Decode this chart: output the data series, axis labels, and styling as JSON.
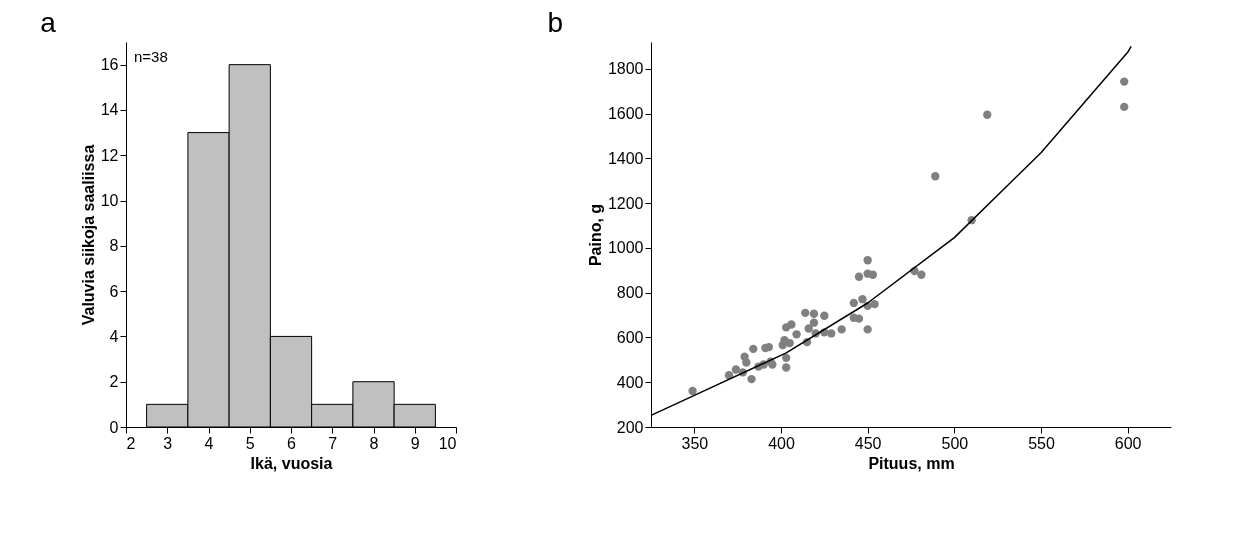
{
  "chart_data": [
    {
      "type": "histogram",
      "title": "a",
      "xlabel": "Ikä, vuosia",
      "ylabel": "Valuvia siikoja saaliissa",
      "bins": [
        2.5,
        3.5,
        4.5,
        5.5,
        6.5,
        7.5,
        8.5,
        9.5
      ],
      "values": [
        1,
        13,
        16,
        4,
        1,
        2,
        1
      ],
      "color": "#c0c0c0",
      "xlim": [
        2,
        10
      ],
      "xticks": [
        2,
        3,
        4,
        5,
        6,
        7,
        8,
        9,
        10
      ],
      "ylim": [
        0,
        17
      ],
      "yticks": [
        0,
        2,
        4,
        6,
        8,
        10,
        12,
        14,
        16
      ],
      "annotations": [
        "n=38"
      ],
      "grid": false,
      "legend": false
    },
    {
      "type": "scatter",
      "title": "b",
      "xlabel": "Pituus, mm",
      "ylabel": "Paino, g",
      "xlim": [
        325,
        625
      ],
      "xticks": [
        350,
        400,
        450,
        500,
        550,
        600
      ],
      "ylim": [
        200,
        1920
      ],
      "yticks": [
        200,
        400,
        600,
        800,
        1000,
        1200,
        1400,
        1600,
        1800
      ],
      "grid": false,
      "legend": false,
      "marker": "circle",
      "series": [
        {
          "type": "scatter",
          "color": "#808080",
          "x": [
            349,
            370,
            374,
            378,
            379,
            380,
            383,
            384,
            387,
            390,
            391,
            393,
            394,
            395,
            401,
            402,
            403,
            403,
            405,
            403,
            406,
            409,
            414,
            415,
            416,
            419,
            420,
            419,
            425,
            425,
            429,
            435,
            442,
            442,
            445,
            447,
            450,
            450,
            454,
            445,
            450,
            450,
            453,
            477,
            481,
            489,
            510,
            519,
            598,
            598
          ],
          "values": [
            361,
            431,
            457,
            444,
            514,
            488,
            414,
            549,
            470,
            479,
            553,
            557,
            492,
            479,
            566,
            588,
            466,
            509,
            575,
            645,
            658,
            614,
            710,
            579,
            640,
            706,
            618,
            666,
            697,
            623,
            618,
            636,
            754,
            688,
            684,
            771,
            741,
            636,
            749,
            871,
            885,
            945,
            880,
            897,
            880,
            1320,
            1124,
            1595,
            1743,
            1630
          ]
        },
        {
          "type": "line",
          "color": "#000000",
          "line_style": "solid",
          "marker": "none",
          "x": [
            325,
            350,
            403,
            450,
            500,
            550,
            600,
            602
          ],
          "values": [
            252,
            341,
            531,
            754,
            1046,
            1425,
            1874,
            1900
          ]
        }
      ]
    }
  ]
}
